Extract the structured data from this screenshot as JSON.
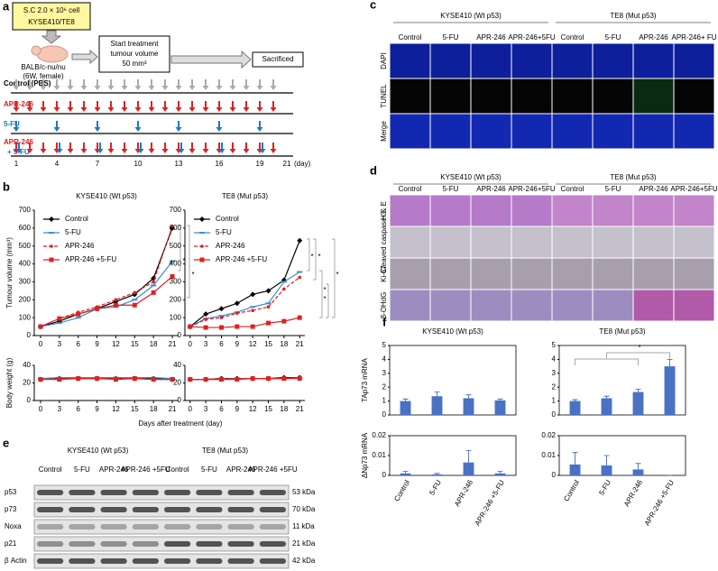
{
  "figure": {
    "a": {
      "label": "a",
      "cell_box": [
        "S.C 2.0 × 10⁶ cell",
        "KYSE410/TE8"
      ],
      "mouse": [
        "BALB/c-nu/nu",
        "(6W, female)"
      ],
      "start": [
        "Start treatment",
        "tumour volume",
        "50 mm³"
      ],
      "end": "Sacrificed",
      "arms": [
        "Control (PBS)",
        "APR-246",
        "5-FU",
        "APR-246",
        "+ 5-FU"
      ],
      "days": [
        "1",
        "4",
        "7",
        "10",
        "13",
        "16",
        "19",
        "21"
      ],
      "day_unit": "(day)"
    },
    "b": {
      "label": "b",
      "xlabel": "Days after treatment (day)"
    },
    "c": {
      "label": "c",
      "groups": [
        "KYSE410 (Wt p53)",
        "TE8 (Mut p53)"
      ],
      "columns": [
        "Control",
        "5-FU",
        "APR-246",
        "APR-246+5FU",
        "Control",
        "5-FU",
        "APR-246",
        "APR-246+ FU"
      ],
      "rows": [
        "DAPI",
        "TUNEL",
        "Merge"
      ]
    },
    "d": {
      "label": "d",
      "groups": [
        "KYSE410 (Wt p53)",
        "TE8 (Mut p53)"
      ],
      "columns": [
        "Control",
        "5-FU",
        "APR-246",
        "APR-246+5FU",
        "Control",
        "5-FU",
        "APR-246",
        "APR-246+5FU"
      ],
      "rows": [
        "H & E",
        "Cleaved caspase-3",
        "Ki-67",
        "8-OHdG"
      ]
    },
    "e": {
      "label": "e",
      "groups": [
        "KYSE410 (Wt p53)",
        "TE8 (Mut p53)"
      ],
      "columns": [
        "Control",
        "5-FU",
        "APR-246",
        "APR-246 +5FU",
        "Control",
        "5-FU",
        "APR-246",
        "APR-246 +5FU"
      ],
      "rows": [
        "p53",
        "p73",
        "Noxa",
        "p21",
        "β Actin"
      ],
      "sizes": [
        "53 kDa",
        "70 kDa",
        "11 kDa",
        "21 kDa",
        "42 kDa"
      ]
    },
    "f": {
      "label": "f"
    }
  },
  "chart_data": [
    {
      "type": "line",
      "title": "KYSE410 (Wt p53)",
      "ylabel": "Tumour volume (mm³)",
      "legend": "upper left",
      "x": [
        0,
        3,
        6,
        9,
        12,
        15,
        18,
        21
      ],
      "xlim": [
        -1,
        22
      ],
      "xticks": [
        0,
        3,
        6,
        9,
        12,
        15,
        18,
        21
      ],
      "ylim": [
        0,
        700
      ],
      "yticks": [
        0,
        100,
        200,
        300,
        400,
        500,
        600,
        700
      ],
      "annotations": [
        "*",
        "*"
      ],
      "series": [
        {
          "name": "Control",
          "color": "#000000",
          "marker": "diamond",
          "line_style": "solid",
          "values": [
            50,
            80,
            120,
            150,
            190,
            230,
            320,
            600
          ]
        },
        {
          "name": "5-FU",
          "color": "#3a8fd0",
          "marker": "dash",
          "line_style": "solid",
          "values": [
            50,
            70,
            100,
            150,
            160,
            200,
            280,
            415
          ]
        },
        {
          "name": "APR-246",
          "color": "#e02020",
          "marker": "dot",
          "line_style": "dashed",
          "values": [
            50,
            95,
            130,
            160,
            200,
            240,
            300,
            610
          ]
        },
        {
          "name": "APR-246 +5-FU",
          "color": "#e02020",
          "marker": "square",
          "line_style": "solid",
          "values": [
            50,
            95,
            120,
            150,
            170,
            170,
            240,
            330
          ]
        }
      ]
    },
    {
      "type": "line",
      "title": "TE8 (Mut p53)",
      "legend": "upper left",
      "x": [
        0,
        3,
        6,
        9,
        12,
        15,
        18,
        21
      ],
      "xlim": [
        -1,
        22
      ],
      "xticks": [
        0,
        3,
        6,
        9,
        12,
        15,
        18,
        21
      ],
      "ylim": [
        0,
        700
      ],
      "yticks": [
        0,
        100,
        200,
        300,
        400,
        500,
        600,
        700
      ],
      "annotations": [
        "*",
        "*",
        "*",
        "*",
        "*"
      ],
      "series": [
        {
          "name": "Control",
          "color": "#000000",
          "marker": "diamond",
          "line_style": "solid",
          "values": [
            50,
            120,
            150,
            180,
            230,
            250,
            310,
            530
          ]
        },
        {
          "name": "5-FU",
          "color": "#3a8fd0",
          "marker": "dash",
          "line_style": "solid",
          "values": [
            50,
            95,
            110,
            130,
            160,
            180,
            300,
            355
          ]
        },
        {
          "name": "APR-246",
          "color": "#e02020",
          "marker": "dot",
          "line_style": "dashed",
          "values": [
            50,
            90,
            100,
            125,
            140,
            160,
            260,
            325
          ]
        },
        {
          "name": "APR-246 +5-FU",
          "color": "#e02020",
          "marker": "square",
          "line_style": "solid",
          "values": [
            50,
            45,
            45,
            50,
            50,
            70,
            80,
            100
          ]
        }
      ]
    },
    {
      "type": "line",
      "ylabel": "Body weight (g)",
      "x": [
        0,
        3,
        6,
        9,
        12,
        15,
        18,
        21
      ],
      "xlim": [
        -1,
        22
      ],
      "xticks": [
        0,
        3,
        6,
        9,
        12,
        15,
        18,
        21
      ],
      "ylim": [
        0,
        40
      ],
      "yticks": [
        0,
        20,
        40
      ],
      "series": [
        {
          "color": "#000000",
          "marker": "diamond",
          "line_style": "solid",
          "values": [
            24,
            25,
            25,
            25,
            25,
            25,
            25,
            24
          ]
        },
        {
          "color": "#3a8fd0",
          "marker": "dash",
          "line_style": "solid",
          "values": [
            25,
            26,
            26,
            26,
            26,
            26,
            26,
            25
          ]
        },
        {
          "color": "#e02020",
          "marker": "dot",
          "line_style": "dashed",
          "values": [
            24,
            25,
            25,
            25,
            25,
            25,
            24,
            24
          ]
        },
        {
          "color": "#e02020",
          "marker": "square",
          "line_style": "solid",
          "values": [
            24,
            24,
            25,
            25,
            24,
            25,
            24,
            24
          ]
        }
      ]
    },
    {
      "type": "line",
      "x": [
        0,
        3,
        6,
        9,
        12,
        15,
        18,
        21
      ],
      "xlim": [
        -1,
        22
      ],
      "xticks": [
        0,
        3,
        6,
        9,
        12,
        15,
        18,
        21
      ],
      "ylim": [
        0,
        40
      ],
      "yticks": [
        0,
        20,
        40
      ],
      "series": [
        {
          "color": "#000000",
          "marker": "diamond",
          "line_style": "solid",
          "values": [
            24,
            24,
            25,
            25,
            25,
            25,
            26,
            26
          ]
        },
        {
          "color": "#3a8fd0",
          "marker": "dash",
          "line_style": "solid",
          "values": [
            24,
            24,
            24,
            25,
            25,
            25,
            25,
            26
          ]
        },
        {
          "color": "#e02020",
          "marker": "dot",
          "line_style": "dashed",
          "values": [
            24,
            24,
            25,
            25,
            25,
            25,
            25,
            26
          ]
        },
        {
          "color": "#e02020",
          "marker": "square",
          "line_style": "solid",
          "values": [
            24,
            24,
            24,
            24,
            25,
            25,
            25,
            25
          ]
        }
      ]
    },
    {
      "type": "bar",
      "title": "KYSE410 (Wt p53)",
      "ylabel": "TAp73 mRNA",
      "color": "#4a72c4",
      "categories": [
        null,
        null,
        null,
        null
      ],
      "values": [
        1.0,
        1.35,
        1.2,
        1.05
      ],
      "errors": [
        0.15,
        0.3,
        0.25,
        0.1
      ],
      "ylim": [
        0,
        5
      ],
      "yticks": [
        0,
        1,
        2,
        3,
        4,
        5
      ]
    },
    {
      "type": "bar",
      "title": "TE8 (Mut p53)",
      "color": "#4a72c4",
      "annotations": [
        "*"
      ],
      "categories": [
        null,
        null,
        null,
        null
      ],
      "values": [
        1.0,
        1.2,
        1.65,
        3.5
      ],
      "errors": [
        0.1,
        0.15,
        0.2,
        0.5
      ],
      "ylim": [
        0,
        5
      ],
      "yticks": [
        0,
        1,
        2,
        3,
        4,
        5
      ]
    },
    {
      "type": "bar",
      "ylabel": "ΔNp73 mRNA",
      "color": "#4a72c4",
      "categories": [
        "Control",
        "5-FU",
        "APR-246",
        "APR-246 +5-FU"
      ],
      "values": [
        0.001,
        0.0005,
        0.0065,
        0.001
      ],
      "errors": [
        0.001,
        0.0005,
        0.006,
        0.001
      ],
      "ylim": [
        0,
        0.02
      ],
      "yticks": [
        0,
        0.01,
        0.02
      ]
    },
    {
      "type": "bar",
      "color": "#4a72c4",
      "categories": [
        "Control",
        "5-FU",
        "APR-246",
        "APR-246 +5-FU"
      ],
      "values": [
        0.0055,
        0.005,
        0.003,
        0
      ],
      "errors": [
        0.006,
        0.005,
        0.003,
        0
      ],
      "ylim": [
        0,
        0.02
      ],
      "yticks": [
        0,
        0.01,
        0.02
      ]
    }
  ]
}
